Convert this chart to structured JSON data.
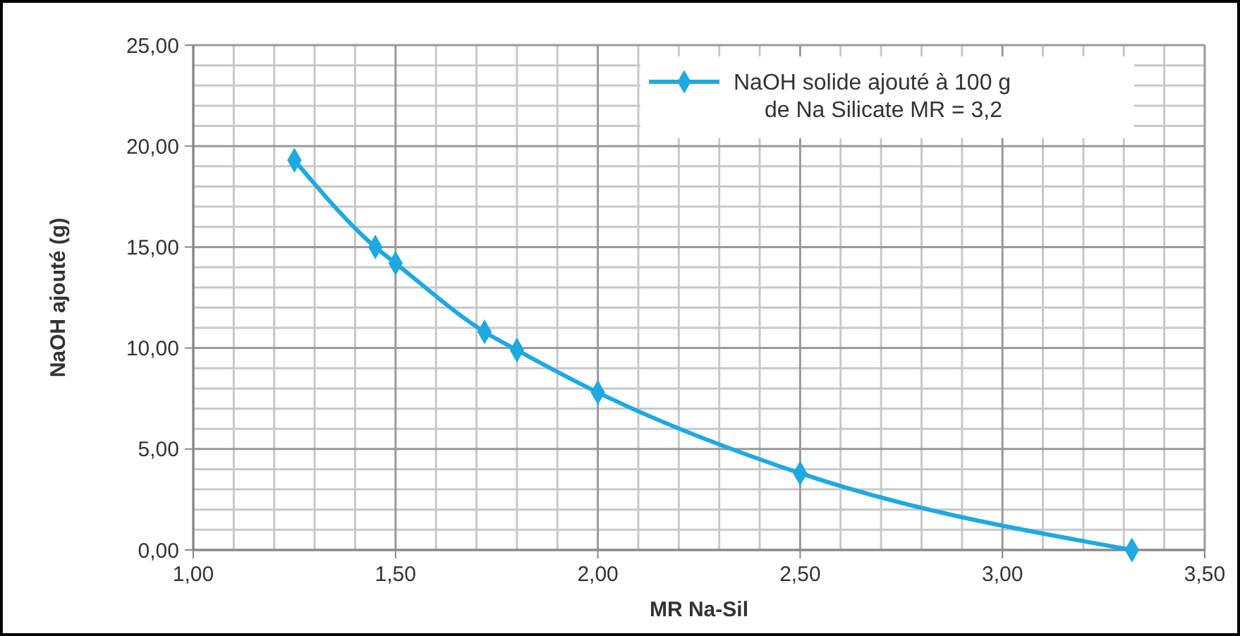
{
  "chart_data": {
    "type": "line",
    "xlabel": "MR Na-Sil",
    "ylabel": "NaOH ajouté (g)",
    "x": [
      1.25,
      1.45,
      1.5,
      1.72,
      1.8,
      2.0,
      2.5,
      3.32
    ],
    "series": [
      {
        "name": "NaOH solide ajouté à 100 g\nde Na Silicate MR = 3,2",
        "color": "#1fa9e1",
        "values": [
          19.3,
          15.0,
          14.2,
          10.8,
          9.9,
          7.8,
          3.8,
          0.0
        ]
      }
    ],
    "xlim": [
      1.0,
      3.5
    ],
    "xticks": [
      {
        "value": 1.0,
        "label": "1,00"
      },
      {
        "value": 1.5,
        "label": "1,50"
      },
      {
        "value": 2.0,
        "label": "2,00"
      },
      {
        "value": 2.5,
        "label": "2,50"
      },
      {
        "value": 3.0,
        "label": "3,00"
      },
      {
        "value": 3.5,
        "label": "3,50"
      }
    ],
    "ylim": [
      0,
      25
    ],
    "yticks": [
      {
        "value": 0,
        "label": "0,00"
      },
      {
        "value": 5,
        "label": "5,00"
      },
      {
        "value": 10,
        "label": "10,00"
      },
      {
        "value": 15,
        "label": "15,00"
      },
      {
        "value": 20,
        "label": "20,00"
      },
      {
        "value": 25,
        "label": "25,00"
      }
    ],
    "grid": true,
    "legend": "top right",
    "marker": "diamond",
    "line_style": "solid"
  }
}
